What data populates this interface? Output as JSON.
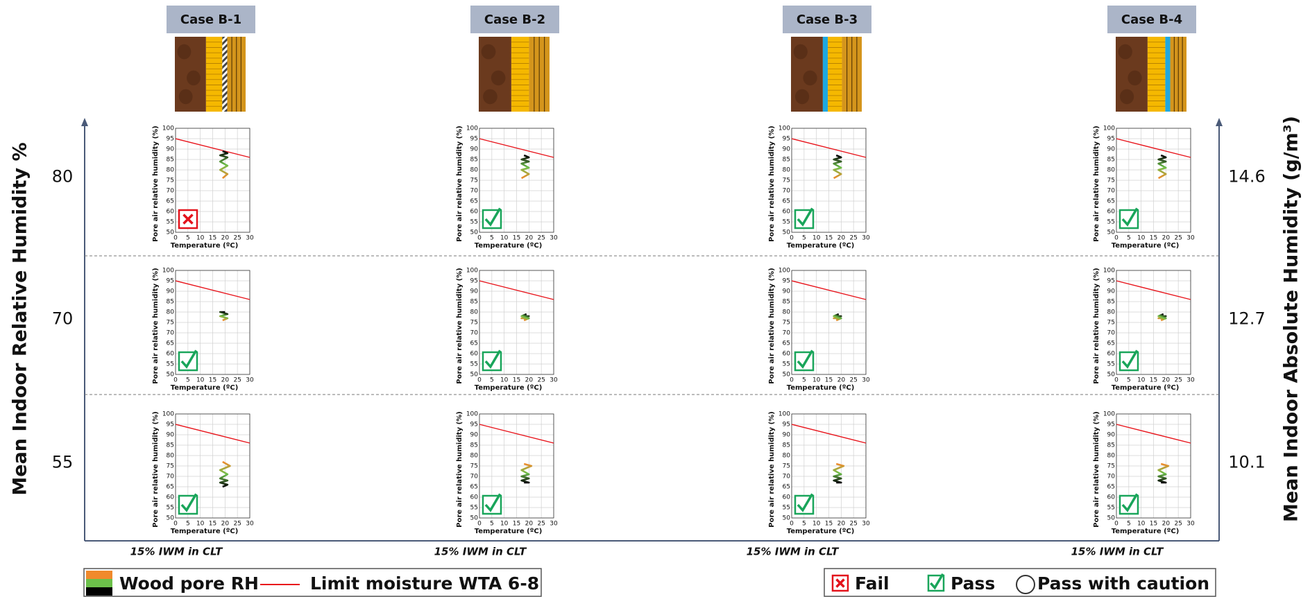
{
  "left_axis_title": "Mean Indoor Relative Humidity %",
  "right_axis_title": "Mean Indoor Absolute Humidity (g/m³)",
  "columns": [
    {
      "title": "Case B-1",
      "footer": "15% IWM in CLT"
    },
    {
      "title": "Case B-2",
      "footer": "15% IWM in CLT"
    },
    {
      "title": "Case B-3",
      "footer": "15% IWM in CLT"
    },
    {
      "title": "Case B-4",
      "footer": "15% IWM in CLT"
    }
  ],
  "rows": [
    {
      "left": 80,
      "right": 14.6
    },
    {
      "left": 70,
      "right": 12.7
    },
    {
      "left": 55,
      "right": 10.1
    }
  ],
  "legend": {
    "series": [
      "Wood pore RH",
      "Limit moisture WTA 6-8"
    ],
    "status": [
      "Fail",
      "Pass",
      "Pass with caution"
    ]
  },
  "chart_data": [
    {
      "type": "line",
      "xlabel": "Temperature (ºC)",
      "ylabel": "Pore air relative humidity (%)",
      "xlim": [
        0,
        30
      ],
      "ylim": [
        50,
        100
      ],
      "xticks": [
        0,
        5,
        10,
        15,
        20,
        25,
        30
      ],
      "yticks": [
        50,
        55,
        60,
        65,
        70,
        75,
        80,
        85,
        90,
        95,
        100
      ],
      "grid": true,
      "status": "Fail",
      "series": [
        {
          "color": "#e8141b",
          "x": [
            0,
            30
          ],
          "values": [
            95,
            86
          ]
        },
        {
          "colors": [
            "#f08a2c",
            "#6cc04a",
            "#000000"
          ],
          "x": [
            19,
            21,
            18,
            21,
            18,
            21,
            18,
            21,
            19
          ],
          "values": [
            76,
            78,
            80,
            82,
            84,
            86,
            87,
            88,
            89
          ]
        }
      ]
    },
    {
      "type": "line",
      "xlabel": "Temperature (ºC)",
      "ylabel": "Pore air relative humidity (%)",
      "xlim": [
        0,
        30
      ],
      "ylim": [
        50,
        100
      ],
      "xticks": [
        0,
        5,
        10,
        15,
        20,
        25,
        30
      ],
      "yticks": [
        50,
        55,
        60,
        65,
        70,
        75,
        80,
        85,
        90,
        95,
        100
      ],
      "grid": true,
      "status": "Pass",
      "series": [
        {
          "color": "#e8141b",
          "x": [
            0,
            30
          ],
          "values": [
            95,
            86
          ]
        },
        {
          "colors": [
            "#f08a2c",
            "#6cc04a",
            "#000000"
          ],
          "x": [
            17,
            20,
            17,
            20,
            17,
            20,
            17,
            20,
            18
          ],
          "values": [
            76,
            78,
            80,
            81,
            83,
            84,
            85,
            86,
            87
          ]
        }
      ]
    },
    {
      "type": "line",
      "xlabel": "Temperature (ºC)",
      "ylabel": "Pore air relative humidity (%)",
      "xlim": [
        0,
        30
      ],
      "ylim": [
        50,
        100
      ],
      "xticks": [
        0,
        5,
        10,
        15,
        20,
        25,
        30
      ],
      "yticks": [
        50,
        55,
        60,
        65,
        70,
        75,
        80,
        85,
        90,
        95,
        100
      ],
      "grid": true,
      "status": "Pass",
      "series": [
        {
          "color": "#e8141b",
          "x": [
            0,
            30
          ],
          "values": [
            95,
            86
          ]
        },
        {
          "colors": [
            "#f08a2c",
            "#6cc04a",
            "#000000"
          ],
          "x": [
            17,
            20,
            17,
            20,
            17,
            20,
            17,
            20,
            18
          ],
          "values": [
            76,
            78,
            80,
            81,
            83,
            84,
            85,
            86,
            87
          ]
        }
      ]
    },
    {
      "type": "line",
      "xlabel": "Temperature (ºC)",
      "ylabel": "Pore air relative humidity (%)",
      "xlim": [
        0,
        30
      ],
      "ylim": [
        50,
        100
      ],
      "xticks": [
        0,
        5,
        10,
        15,
        20,
        25,
        30
      ],
      "yticks": [
        50,
        55,
        60,
        65,
        70,
        75,
        80,
        85,
        90,
        95,
        100
      ],
      "grid": true,
      "status": "Pass",
      "series": [
        {
          "color": "#e8141b",
          "x": [
            0,
            30
          ],
          "values": [
            95,
            86
          ]
        },
        {
          "colors": [
            "#f08a2c",
            "#6cc04a",
            "#000000"
          ],
          "x": [
            17,
            20,
            17,
            20,
            17,
            20,
            17,
            20,
            18
          ],
          "values": [
            76,
            78,
            80,
            81,
            83,
            84,
            85,
            86,
            87
          ]
        }
      ]
    },
    {
      "type": "line",
      "xlabel": "Temperature (ºC)",
      "ylabel": "Pore air relative humidity (%)",
      "xlim": [
        0,
        30
      ],
      "ylim": [
        50,
        100
      ],
      "xticks": [
        0,
        5,
        10,
        15,
        20,
        25,
        30
      ],
      "yticks": [
        50,
        55,
        60,
        65,
        70,
        75,
        80,
        85,
        90,
        95,
        100
      ],
      "grid": true,
      "status": "Pass",
      "series": [
        {
          "color": "#e8141b",
          "x": [
            0,
            30
          ],
          "values": [
            95,
            86
          ]
        },
        {
          "colors": [
            "#f08a2c",
            "#6cc04a",
            "#000000"
          ],
          "x": [
            19,
            21,
            18,
            21,
            18,
            20
          ],
          "values": [
            76,
            77,
            78,
            79,
            80,
            80
          ]
        }
      ]
    },
    {
      "type": "line",
      "xlabel": "Temperature (ºC)",
      "ylabel": "Pore air relative humidity (%)",
      "xlim": [
        0,
        30
      ],
      "ylim": [
        50,
        100
      ],
      "xticks": [
        0,
        5,
        10,
        15,
        20,
        25,
        30
      ],
      "yticks": [
        50,
        55,
        60,
        65,
        70,
        75,
        80,
        85,
        90,
        95,
        100
      ],
      "grid": true,
      "status": "Pass",
      "series": [
        {
          "color": "#e8141b",
          "x": [
            0,
            30
          ],
          "values": [
            95,
            86
          ]
        },
        {
          "colors": [
            "#f08a2c",
            "#6cc04a",
            "#000000"
          ],
          "x": [
            18,
            20,
            17,
            20,
            17,
            19
          ],
          "values": [
            76,
            77,
            77,
            78,
            78,
            79
          ]
        }
      ]
    },
    {
      "type": "line",
      "xlabel": "Temperature (ºC)",
      "ylabel": "Pore air relative humidity (%)",
      "xlim": [
        0,
        30
      ],
      "ylim": [
        50,
        100
      ],
      "xticks": [
        0,
        5,
        10,
        15,
        20,
        25,
        30
      ],
      "yticks": [
        50,
        55,
        60,
        65,
        70,
        75,
        80,
        85,
        90,
        95,
        100
      ],
      "grid": true,
      "status": "Pass",
      "series": [
        {
          "color": "#e8141b",
          "x": [
            0,
            30
          ],
          "values": [
            95,
            86
          ]
        },
        {
          "colors": [
            "#f08a2c",
            "#6cc04a",
            "#000000"
          ],
          "x": [
            18,
            20,
            17,
            20,
            17,
            19
          ],
          "values": [
            76,
            77,
            77,
            78,
            78,
            79
          ]
        }
      ]
    },
    {
      "type": "line",
      "xlabel": "Temperature (ºC)",
      "ylabel": "Pore air relative humidity (%)",
      "xlim": [
        0,
        30
      ],
      "ylim": [
        50,
        100
      ],
      "xticks": [
        0,
        5,
        10,
        15,
        20,
        25,
        30
      ],
      "yticks": [
        50,
        55,
        60,
        65,
        70,
        75,
        80,
        85,
        90,
        95,
        100
      ],
      "grid": true,
      "status": "Pass",
      "series": [
        {
          "color": "#e8141b",
          "x": [
            0,
            30
          ],
          "values": [
            95,
            86
          ]
        },
        {
          "colors": [
            "#f08a2c",
            "#6cc04a",
            "#000000"
          ],
          "x": [
            18,
            20,
            17,
            20,
            17,
            19
          ],
          "values": [
            76,
            77,
            77,
            78,
            78,
            79
          ]
        }
      ]
    },
    {
      "type": "line",
      "xlabel": "Temperature (ºC)",
      "ylabel": "Pore air relative humidity (%)",
      "xlim": [
        0,
        30
      ],
      "ylim": [
        50,
        100
      ],
      "xticks": [
        0,
        5,
        10,
        15,
        20,
        25,
        30
      ],
      "yticks": [
        50,
        55,
        60,
        65,
        70,
        75,
        80,
        85,
        90,
        95,
        100
      ],
      "grid": true,
      "status": "Pass",
      "series": [
        {
          "color": "#e8141b",
          "x": [
            0,
            30
          ],
          "values": [
            95,
            86
          ]
        },
        {
          "colors": [
            "#f08a2c",
            "#6cc04a",
            "#000000"
          ],
          "x": [
            19,
            22,
            18,
            21,
            18,
            21,
            18,
            21,
            19
          ],
          "values": [
            77,
            75,
            73,
            71,
            69,
            68,
            67,
            66,
            65
          ]
        }
      ]
    },
    {
      "type": "line",
      "xlabel": "Temperature (ºC)",
      "ylabel": "Pore air relative humidity (%)",
      "xlim": [
        0,
        30
      ],
      "ylim": [
        50,
        100
      ],
      "xticks": [
        0,
        5,
        10,
        15,
        20,
        25,
        30
      ],
      "yticks": [
        50,
        55,
        60,
        65,
        70,
        75,
        80,
        85,
        90,
        95,
        100
      ],
      "grid": true,
      "status": "Pass",
      "series": [
        {
          "color": "#e8141b",
          "x": [
            0,
            30
          ],
          "values": [
            95,
            86
          ]
        },
        {
          "colors": [
            "#f08a2c",
            "#6cc04a",
            "#000000"
          ],
          "x": [
            18,
            21,
            17,
            20,
            17,
            20,
            17,
            20,
            18
          ],
          "values": [
            76,
            75,
            73,
            71,
            70,
            69,
            68,
            67,
            67
          ]
        }
      ]
    },
    {
      "type": "line",
      "xlabel": "Temperature (ºC)",
      "ylabel": "Pore air relative humidity (%)",
      "xlim": [
        0,
        30
      ],
      "ylim": [
        50,
        100
      ],
      "xticks": [
        0,
        5,
        10,
        15,
        20,
        25,
        30
      ],
      "yticks": [
        50,
        55,
        60,
        65,
        70,
        75,
        80,
        85,
        90,
        95,
        100
      ],
      "grid": true,
      "status": "Pass",
      "series": [
        {
          "color": "#e8141b",
          "x": [
            0,
            30
          ],
          "values": [
            95,
            86
          ]
        },
        {
          "colors": [
            "#f08a2c",
            "#6cc04a",
            "#000000"
          ],
          "x": [
            18,
            21,
            17,
            20,
            17,
            20,
            17,
            20,
            18
          ],
          "values": [
            76,
            75,
            73,
            71,
            70,
            69,
            68,
            67,
            67
          ]
        }
      ]
    },
    {
      "type": "line",
      "xlabel": "Temperature (ºC)",
      "ylabel": "Pore air relative humidity (%)",
      "xlim": [
        0,
        30
      ],
      "ylim": [
        50,
        100
      ],
      "xticks": [
        0,
        5,
        10,
        15,
        20,
        25,
        30
      ],
      "yticks": [
        50,
        55,
        60,
        65,
        70,
        75,
        80,
        85,
        90,
        95,
        100
      ],
      "grid": true,
      "status": "Pass",
      "series": [
        {
          "color": "#e8141b",
          "x": [
            0,
            30
          ],
          "values": [
            95,
            86
          ]
        },
        {
          "colors": [
            "#f08a2c",
            "#6cc04a",
            "#000000"
          ],
          "x": [
            18,
            21,
            17,
            20,
            17,
            20,
            17,
            20,
            18
          ],
          "values": [
            76,
            75,
            73,
            71,
            70,
            69,
            68,
            67,
            67
          ]
        }
      ]
    }
  ]
}
